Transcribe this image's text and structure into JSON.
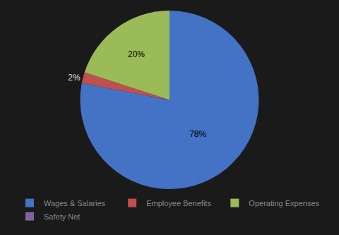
{
  "chart_data": {
    "type": "pie",
    "categories": [
      "Wages & Salaries",
      "Employee Benefits",
      "Operating Expenses",
      "Safety Net"
    ],
    "values": [
      78,
      2,
      20,
      0
    ],
    "value_labels": [
      "78%",
      "2%",
      "20%",
      null
    ],
    "data_labels": true,
    "colors": [
      "#4472C4",
      "#C0504D",
      "#9BBB59",
      "#8064A2"
    ],
    "legend": "bottom"
  }
}
